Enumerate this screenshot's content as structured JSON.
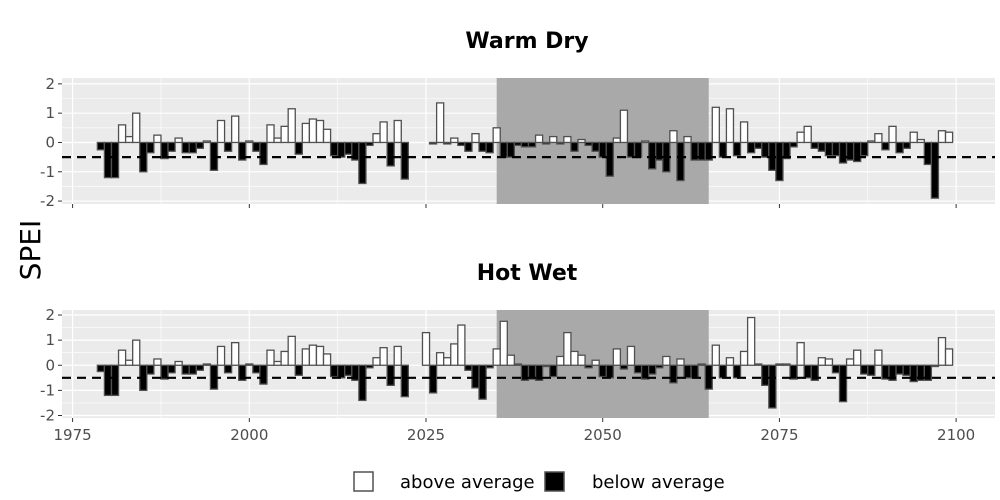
{
  "chart_data": {
    "type": "bar",
    "ylabel": "SPEI",
    "threshold": -0.5,
    "shaded_period": [
      2035,
      2065
    ],
    "xlim": [
      1973.5,
      2105.5
    ],
    "ylim": [
      -2.1,
      2.2
    ],
    "x_ticks": [
      1975,
      2000,
      2025,
      2050,
      2075,
      2100
    ],
    "y_ticks": [
      2,
      1,
      0,
      -1,
      -2
    ],
    "legend": {
      "above": "above average",
      "below": "below average"
    },
    "colors": {
      "panel": "#ebebeb",
      "grid": "#ffffff",
      "shade": "#a9a9a9",
      "above": "#ffffff",
      "below": "#000000",
      "bar_edge": "#505050"
    },
    "panels": [
      {
        "title": "Warm Dry",
        "series": [
          {
            "x": 1979,
            "y": -0.25
          },
          {
            "x": 1980,
            "y": -1.2
          },
          {
            "x": 1981,
            "y": -1.2
          },
          {
            "x": 1982,
            "y": 0.6
          },
          {
            "x": 1983,
            "y": 0.2
          },
          {
            "x": 1984,
            "y": 1.0
          },
          {
            "x": 1985,
            "y": -1.0
          },
          {
            "x": 1986,
            "y": -0.35
          },
          {
            "x": 1987,
            "y": 0.25
          },
          {
            "x": 1988,
            "y": -0.55
          },
          {
            "x": 1989,
            "y": -0.3
          },
          {
            "x": 1990,
            "y": 0.15
          },
          {
            "x": 1991,
            "y": -0.35
          },
          {
            "x": 1992,
            "y": -0.35
          },
          {
            "x": 1993,
            "y": -0.2
          },
          {
            "x": 1994,
            "y": 0.05
          },
          {
            "x": 1995,
            "y": -0.95
          },
          {
            "x": 1996,
            "y": 0.75
          },
          {
            "x": 1997,
            "y": -0.3
          },
          {
            "x": 1998,
            "y": 0.9
          },
          {
            "x": 1999,
            "y": -0.6
          },
          {
            "x": 2000,
            "y": 0.05
          },
          {
            "x": 2001,
            "y": -0.3
          },
          {
            "x": 2002,
            "y": -0.75
          },
          {
            "x": 2003,
            "y": 0.6
          },
          {
            "x": 2004,
            "y": 0.15
          },
          {
            "x": 2005,
            "y": 0.55
          },
          {
            "x": 2006,
            "y": 1.15
          },
          {
            "x": 2007,
            "y": -0.4
          },
          {
            "x": 2008,
            "y": 0.65
          },
          {
            "x": 2009,
            "y": 0.8
          },
          {
            "x": 2010,
            "y": 0.75
          },
          {
            "x": 2011,
            "y": 0.45
          },
          {
            "x": 2012,
            "y": -0.45
          },
          {
            "x": 2013,
            "y": -0.5
          },
          {
            "x": 2014,
            "y": -0.4
          },
          {
            "x": 2015,
            "y": -0.6
          },
          {
            "x": 2016,
            "y": -1.4
          },
          {
            "x": 2017,
            "y": -0.1
          },
          {
            "x": 2018,
            "y": 0.3
          },
          {
            "x": 2019,
            "y": 0.7
          },
          {
            "x": 2020,
            "y": -0.8
          },
          {
            "x": 2021,
            "y": 0.75
          },
          {
            "x": 2022,
            "y": -1.25
          },
          {
            "x": 2026,
            "y": -0.05
          },
          {
            "x": 2027,
            "y": 1.35
          },
          {
            "x": 2028,
            "y": -0.05
          },
          {
            "x": 2029,
            "y": 0.15
          },
          {
            "x": 2030,
            "y": -0.1
          },
          {
            "x": 2031,
            "y": -0.3
          },
          {
            "x": 2032,
            "y": 0.3
          },
          {
            "x": 2033,
            "y": -0.3
          },
          {
            "x": 2034,
            "y": -0.35
          },
          {
            "x": 2035,
            "y": 0.5
          },
          {
            "x": 2036,
            "y": -0.5
          },
          {
            "x": 2037,
            "y": -0.5
          },
          {
            "x": 2038,
            "y": -0.1
          },
          {
            "x": 2039,
            "y": -0.15
          },
          {
            "x": 2040,
            "y": -0.15
          },
          {
            "x": 2041,
            "y": 0.25
          },
          {
            "x": 2042,
            "y": -0.05
          },
          {
            "x": 2043,
            "y": 0.2
          },
          {
            "x": 2044,
            "y": -0.05
          },
          {
            "x": 2045,
            "y": 0.2
          },
          {
            "x": 2046,
            "y": -0.3
          },
          {
            "x": 2047,
            "y": 0.1
          },
          {
            "x": 2048,
            "y": -0.1
          },
          {
            "x": 2049,
            "y": -0.3
          },
          {
            "x": 2050,
            "y": -0.5
          },
          {
            "x": 2051,
            "y": -1.15
          },
          {
            "x": 2052,
            "y": 0.15
          },
          {
            "x": 2053,
            "y": 1.1
          },
          {
            "x": 2054,
            "y": -0.5
          },
          {
            "x": 2055,
            "y": -0.5
          },
          {
            "x": 2056,
            "y": 0.05
          },
          {
            "x": 2057,
            "y": -0.9
          },
          {
            "x": 2058,
            "y": -0.6
          },
          {
            "x": 2059,
            "y": -1.0
          },
          {
            "x": 2060,
            "y": 0.4
          },
          {
            "x": 2061,
            "y": -1.3
          },
          {
            "x": 2062,
            "y": 0.2
          },
          {
            "x": 2063,
            "y": -0.6
          },
          {
            "x": 2064,
            "y": -0.6
          },
          {
            "x": 2065,
            "y": -0.6
          },
          {
            "x": 2066,
            "y": 1.2
          },
          {
            "x": 2067,
            "y": -0.5
          },
          {
            "x": 2068,
            "y": 1.15
          },
          {
            "x": 2069,
            "y": -0.45
          },
          {
            "x": 2070,
            "y": 0.7
          },
          {
            "x": 2071,
            "y": -0.35
          },
          {
            "x": 2072,
            "y": -0.2
          },
          {
            "x": 2073,
            "y": -0.5
          },
          {
            "x": 2074,
            "y": -0.95
          },
          {
            "x": 2075,
            "y": -1.3
          },
          {
            "x": 2076,
            "y": -0.55
          },
          {
            "x": 2077,
            "y": -0.15
          },
          {
            "x": 2078,
            "y": 0.35
          },
          {
            "x": 2079,
            "y": 0.55
          },
          {
            "x": 2080,
            "y": -0.2
          },
          {
            "x": 2081,
            "y": -0.3
          },
          {
            "x": 2082,
            "y": -0.45
          },
          {
            "x": 2083,
            "y": -0.45
          },
          {
            "x": 2084,
            "y": -0.7
          },
          {
            "x": 2085,
            "y": -0.6
          },
          {
            "x": 2086,
            "y": -0.65
          },
          {
            "x": 2087,
            "y": -0.45
          },
          {
            "x": 2088,
            "y": 0.05
          },
          {
            "x": 2089,
            "y": 0.3
          },
          {
            "x": 2090,
            "y": -0.25
          },
          {
            "x": 2091,
            "y": 0.55
          },
          {
            "x": 2092,
            "y": -0.35
          },
          {
            "x": 2093,
            "y": -0.2
          },
          {
            "x": 2094,
            "y": 0.35
          },
          {
            "x": 2095,
            "y": 0.1
          },
          {
            "x": 2096,
            "y": -0.75
          },
          {
            "x": 2097,
            "y": -1.9
          },
          {
            "x": 2098,
            "y": 0.4
          },
          {
            "x": 2099,
            "y": 0.35
          }
        ]
      },
      {
        "title": "Hot Wet",
        "series": [
          {
            "x": 1979,
            "y": -0.25
          },
          {
            "x": 1980,
            "y": -1.2
          },
          {
            "x": 1981,
            "y": -1.2
          },
          {
            "x": 1982,
            "y": 0.6
          },
          {
            "x": 1983,
            "y": 0.2
          },
          {
            "x": 1984,
            "y": 1.0
          },
          {
            "x": 1985,
            "y": -1.0
          },
          {
            "x": 1986,
            "y": -0.35
          },
          {
            "x": 1987,
            "y": 0.25
          },
          {
            "x": 1988,
            "y": -0.55
          },
          {
            "x": 1989,
            "y": -0.3
          },
          {
            "x": 1990,
            "y": 0.15
          },
          {
            "x": 1991,
            "y": -0.35
          },
          {
            "x": 1992,
            "y": -0.35
          },
          {
            "x": 1993,
            "y": -0.2
          },
          {
            "x": 1994,
            "y": 0.05
          },
          {
            "x": 1995,
            "y": -0.95
          },
          {
            "x": 1996,
            "y": 0.75
          },
          {
            "x": 1997,
            "y": -0.3
          },
          {
            "x": 1998,
            "y": 0.9
          },
          {
            "x": 1999,
            "y": -0.6
          },
          {
            "x": 2000,
            "y": 0.05
          },
          {
            "x": 2001,
            "y": -0.3
          },
          {
            "x": 2002,
            "y": -0.75
          },
          {
            "x": 2003,
            "y": 0.6
          },
          {
            "x": 2004,
            "y": 0.15
          },
          {
            "x": 2005,
            "y": 0.55
          },
          {
            "x": 2006,
            "y": 1.15
          },
          {
            "x": 2007,
            "y": -0.4
          },
          {
            "x": 2008,
            "y": 0.65
          },
          {
            "x": 2009,
            "y": 0.8
          },
          {
            "x": 2010,
            "y": 0.75
          },
          {
            "x": 2011,
            "y": 0.45
          },
          {
            "x": 2012,
            "y": -0.45
          },
          {
            "x": 2013,
            "y": -0.5
          },
          {
            "x": 2014,
            "y": -0.4
          },
          {
            "x": 2015,
            "y": -0.6
          },
          {
            "x": 2016,
            "y": -1.4
          },
          {
            "x": 2017,
            "y": -0.1
          },
          {
            "x": 2018,
            "y": 0.3
          },
          {
            "x": 2019,
            "y": 0.7
          },
          {
            "x": 2020,
            "y": -0.8
          },
          {
            "x": 2021,
            "y": 0.75
          },
          {
            "x": 2022,
            "y": -1.25
          },
          {
            "x": 2025,
            "y": 1.3
          },
          {
            "x": 2026,
            "y": -1.1
          },
          {
            "x": 2027,
            "y": 0.5
          },
          {
            "x": 2028,
            "y": 0.3
          },
          {
            "x": 2029,
            "y": 0.85
          },
          {
            "x": 2030,
            "y": 1.6
          },
          {
            "x": 2031,
            "y": -0.2
          },
          {
            "x": 2032,
            "y": -0.9
          },
          {
            "x": 2033,
            "y": -1.35
          },
          {
            "x": 2034,
            "y": -0.1
          },
          {
            "x": 2035,
            "y": 0.65
          },
          {
            "x": 2036,
            "y": 1.75
          },
          {
            "x": 2037,
            "y": 0.4
          },
          {
            "x": 2038,
            "y": 0.05
          },
          {
            "x": 2039,
            "y": -0.6
          },
          {
            "x": 2040,
            "y": -0.55
          },
          {
            "x": 2041,
            "y": -0.6
          },
          {
            "x": 2042,
            "y": -0.05
          },
          {
            "x": 2043,
            "y": -0.45
          },
          {
            "x": 2044,
            "y": 0.35
          },
          {
            "x": 2045,
            "y": 1.3
          },
          {
            "x": 2046,
            "y": 0.55
          },
          {
            "x": 2047,
            "y": 0.4
          },
          {
            "x": 2048,
            "y": -0.1
          },
          {
            "x": 2049,
            "y": 0.2
          },
          {
            "x": 2050,
            "y": -0.45
          },
          {
            "x": 2051,
            "y": -0.5
          },
          {
            "x": 2052,
            "y": 0.65
          },
          {
            "x": 2053,
            "y": -0.15
          },
          {
            "x": 2054,
            "y": 0.75
          },
          {
            "x": 2055,
            "y": -0.3
          },
          {
            "x": 2056,
            "y": -0.55
          },
          {
            "x": 2057,
            "y": -0.35
          },
          {
            "x": 2058,
            "y": -0.1
          },
          {
            "x": 2059,
            "y": 0.35
          },
          {
            "x": 2060,
            "y": -0.7
          },
          {
            "x": 2061,
            "y": 0.25
          },
          {
            "x": 2062,
            "y": -0.5
          },
          {
            "x": 2063,
            "y": -0.5
          },
          {
            "x": 2064,
            "y": 0.05
          },
          {
            "x": 2065,
            "y": -0.95
          },
          {
            "x": 2066,
            "y": 0.8
          },
          {
            "x": 2067,
            "y": -0.5
          },
          {
            "x": 2068,
            "y": 0.3
          },
          {
            "x": 2069,
            "y": -0.5
          },
          {
            "x": 2070,
            "y": 0.55
          },
          {
            "x": 2071,
            "y": 1.9
          },
          {
            "x": 2072,
            "y": 0.05
          },
          {
            "x": 2073,
            "y": -0.8
          },
          {
            "x": 2074,
            "y": -1.7
          },
          {
            "x": 2075,
            "y": 0.05
          },
          {
            "x": 2076,
            "y": 0.05
          },
          {
            "x": 2077,
            "y": -0.55
          },
          {
            "x": 2078,
            "y": 0.9
          },
          {
            "x": 2079,
            "y": -0.5
          },
          {
            "x": 2080,
            "y": -0.6
          },
          {
            "x": 2081,
            "y": 0.3
          },
          {
            "x": 2082,
            "y": 0.25
          },
          {
            "x": 2083,
            "y": -0.3
          },
          {
            "x": 2084,
            "y": -1.45
          },
          {
            "x": 2085,
            "y": 0.25
          },
          {
            "x": 2086,
            "y": 0.6
          },
          {
            "x": 2087,
            "y": -0.35
          },
          {
            "x": 2088,
            "y": -0.4
          },
          {
            "x": 2089,
            "y": 0.6
          },
          {
            "x": 2090,
            "y": -0.55
          },
          {
            "x": 2091,
            "y": -0.6
          },
          {
            "x": 2092,
            "y": -0.35
          },
          {
            "x": 2093,
            "y": -0.4
          },
          {
            "x": 2094,
            "y": -0.65
          },
          {
            "x": 2095,
            "y": -0.6
          },
          {
            "x": 2096,
            "y": -0.6
          },
          {
            "x": 2097,
            "y": -0.05
          },
          {
            "x": 2098,
            "y": 1.1
          },
          {
            "x": 2099,
            "y": 0.65
          }
        ]
      }
    ]
  }
}
